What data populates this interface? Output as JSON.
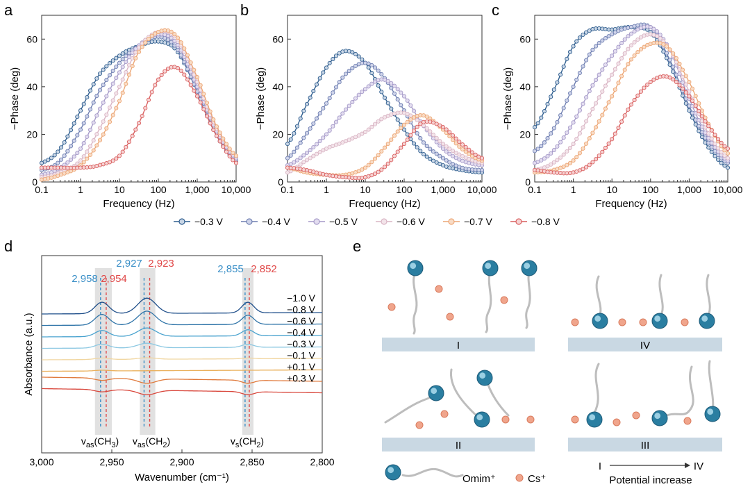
{
  "legend": {
    "entries": [
      {
        "label": "−0.3 V",
        "color": "#2e5d8e",
        "fill": "#c9d6e6"
      },
      {
        "label": "−0.4 V",
        "color": "#6f7fb1",
        "fill": "#cfd4ea"
      },
      {
        "label": "−0.5 V",
        "color": "#a59ac8",
        "fill": "#e3ddf0"
      },
      {
        "label": "−0.6 V",
        "color": "#d9b5c4",
        "fill": "#f3e4ea"
      },
      {
        "label": "−0.7 V",
        "color": "#eca675",
        "fill": "#f9dcc6"
      },
      {
        "label": "−0.8 V",
        "color": "#d95f5f",
        "fill": "#f6d3d3"
      }
    ]
  },
  "chart_data": [
    {
      "panel": "a",
      "type": "line",
      "xscale": "log",
      "xlim": [
        0.1,
        10000
      ],
      "ylim": [
        0,
        70
      ],
      "xlabel": "Frequency (Hz)",
      "ylabel": "−Phase (deg)",
      "xticks": [
        {
          "v": 0.1,
          "label": "0.1"
        },
        {
          "v": 1,
          "label": "1"
        },
        {
          "v": 10,
          "label": "10"
        },
        {
          "v": 100,
          "label": "100"
        },
        {
          "v": 1000,
          "label": "1,000"
        },
        {
          "v": 10000,
          "label": "10,000"
        }
      ],
      "yticks": [
        {
          "v": 0,
          "label": "0"
        },
        {
          "v": 20,
          "label": "20"
        },
        {
          "v": 40,
          "label": "40"
        },
        {
          "v": 60,
          "label": "60"
        }
      ],
      "series": [
        {
          "name": "−0.3 V",
          "x": [
            0.1,
            0.3,
            1,
            3,
            10,
            30,
            100,
            300,
            1000,
            3000,
            10000
          ],
          "y": [
            8,
            14,
            30,
            45,
            53,
            57,
            59,
            55,
            38,
            20,
            9
          ]
        },
        {
          "name": "−0.4 V",
          "x": [
            0.1,
            0.3,
            1,
            3,
            10,
            30,
            100,
            300,
            1000,
            3000,
            10000
          ],
          "y": [
            5,
            9,
            22,
            38,
            50,
            57,
            61,
            56,
            38,
            20,
            9
          ]
        },
        {
          "name": "−0.5 V",
          "x": [
            0.1,
            0.3,
            1,
            3,
            10,
            30,
            100,
            300,
            1000,
            3000,
            10000
          ],
          "y": [
            3,
            6,
            14,
            30,
            46,
            57,
            62,
            58,
            40,
            22,
            10
          ]
        },
        {
          "name": "−0.6 V",
          "x": [
            0.1,
            0.3,
            1,
            3,
            10,
            30,
            100,
            300,
            1000,
            3000,
            10000
          ],
          "y": [
            2,
            4,
            9,
            22,
            40,
            56,
            63,
            60,
            42,
            23,
            11
          ]
        },
        {
          "name": "−0.7 V",
          "x": [
            0.1,
            0.3,
            1,
            3,
            10,
            30,
            100,
            300,
            1000,
            3000,
            10000
          ],
          "y": [
            1,
            3,
            7,
            17,
            34,
            54,
            63,
            61,
            44,
            24,
            11
          ]
        },
        {
          "name": "−0.8 V",
          "x": [
            0.1,
            0.3,
            1,
            3,
            10,
            30,
            100,
            300,
            1000,
            3000,
            10000
          ],
          "y": [
            6,
            6,
            6,
            7,
            11,
            24,
            43,
            48,
            36,
            20,
            8
          ]
        }
      ]
    },
    {
      "panel": "b",
      "type": "line",
      "xscale": "log",
      "xlim": [
        0.1,
        10000
      ],
      "ylim": [
        0,
        70
      ],
      "xlabel": "Frequency (Hz)",
      "ylabel": "−Phase (deg)",
      "xticks": [
        {
          "v": 0.1,
          "label": "0.1"
        },
        {
          "v": 1,
          "label": "1"
        },
        {
          "v": 10,
          "label": "10"
        },
        {
          "v": 100,
          "label": "100"
        },
        {
          "v": 1000,
          "label": "1,000"
        },
        {
          "v": 10000,
          "label": "10,000"
        }
      ],
      "yticks": [
        {
          "v": 0,
          "label": "0"
        },
        {
          "v": 20,
          "label": "20"
        },
        {
          "v": 40,
          "label": "40"
        },
        {
          "v": 60,
          "label": "60"
        }
      ],
      "series": [
        {
          "name": "−0.3 V",
          "x": [
            0.1,
            0.3,
            1,
            3,
            10,
            30,
            100,
            300,
            1000,
            3000,
            10000
          ],
          "y": [
            16,
            32,
            48,
            55,
            50,
            36,
            22,
            12,
            7,
            5,
            4
          ]
        },
        {
          "name": "−0.4 V",
          "x": [
            0.1,
            0.3,
            1,
            3,
            10,
            30,
            100,
            300,
            1000,
            3000,
            10000
          ],
          "y": [
            10,
            20,
            33,
            45,
            50,
            44,
            30,
            17,
            10,
            6,
            5
          ]
        },
        {
          "name": "−0.5 V",
          "x": [
            0.1,
            0.3,
            1,
            3,
            10,
            30,
            100,
            300,
            1000,
            3000,
            10000
          ],
          "y": [
            7,
            12,
            20,
            30,
            39,
            43,
            36,
            24,
            14,
            9,
            7
          ]
        },
        {
          "name": "−0.6 V",
          "x": [
            0.1,
            0.3,
            1,
            3,
            10,
            30,
            100,
            300,
            1000,
            3000,
            10000
          ],
          "y": [
            4,
            9,
            14,
            17,
            21,
            27,
            29,
            24,
            16,
            11,
            8
          ]
        },
        {
          "name": "−0.7 V",
          "x": [
            0.1,
            0.3,
            1,
            3,
            10,
            30,
            100,
            300,
            1000,
            3000,
            10000
          ],
          "y": [
            6,
            4,
            3,
            3,
            6,
            14,
            24,
            28,
            22,
            14,
            9
          ]
        },
        {
          "name": "−0.8 V",
          "x": [
            0.1,
            0.3,
            1,
            3,
            10,
            30,
            100,
            300,
            1000,
            3000,
            10000
          ],
          "y": [
            6,
            5,
            3,
            2,
            2,
            6,
            16,
            25,
            23,
            16,
            10
          ]
        }
      ]
    },
    {
      "panel": "c",
      "type": "line",
      "xscale": "log",
      "xlim": [
        0.1,
        10000
      ],
      "ylim": [
        0,
        70
      ],
      "xlabel": "Frequency (Hz)",
      "ylabel": "−Phase (deg)",
      "xticks": [
        {
          "v": 0.1,
          "label": "0.1"
        },
        {
          "v": 1,
          "label": "1"
        },
        {
          "v": 10,
          "label": "10"
        },
        {
          "v": 100,
          "label": "100"
        },
        {
          "v": 1000,
          "label": "1,000"
        },
        {
          "v": 10000,
          "label": "10,000"
        }
      ],
      "yticks": [
        {
          "v": 0,
          "label": "0"
        },
        {
          "v": 20,
          "label": "20"
        },
        {
          "v": 40,
          "label": "40"
        },
        {
          "v": 60,
          "label": "60"
        }
      ],
      "series": [
        {
          "name": "−0.3 V",
          "x": [
            0.1,
            0.3,
            1,
            3,
            10,
            30,
            100,
            300,
            1000,
            3000,
            10000
          ],
          "y": [
            23,
            38,
            57,
            64,
            64,
            65,
            63,
            50,
            30,
            15,
            6
          ]
        },
        {
          "name": "−0.4 V",
          "x": [
            0.1,
            0.3,
            1,
            3,
            10,
            30,
            100,
            300,
            1000,
            3000,
            10000
          ],
          "y": [
            13,
            22,
            40,
            55,
            62,
            65,
            65,
            52,
            32,
            17,
            8
          ]
        },
        {
          "name": "−0.5 V",
          "x": [
            0.1,
            0.3,
            1,
            3,
            10,
            30,
            100,
            300,
            1000,
            3000,
            10000
          ],
          "y": [
            8,
            13,
            25,
            40,
            53,
            62,
            65,
            56,
            35,
            19,
            9
          ]
        },
        {
          "name": "−0.6 V",
          "x": [
            0.1,
            0.3,
            1,
            3,
            10,
            30,
            100,
            300,
            1000,
            3000,
            10000
          ],
          "y": [
            5,
            8,
            16,
            30,
            45,
            57,
            62,
            56,
            38,
            21,
            10
          ]
        },
        {
          "name": "−0.7 V",
          "x": [
            0.1,
            0.3,
            1,
            3,
            10,
            30,
            100,
            300,
            1000,
            3000,
            10000
          ],
          "y": [
            4,
            5,
            9,
            20,
            36,
            51,
            58,
            56,
            42,
            25,
            12
          ]
        },
        {
          "name": "−0.8 V",
          "x": [
            0.1,
            0.3,
            1,
            3,
            10,
            30,
            100,
            300,
            1000,
            3000,
            10000
          ],
          "y": [
            5,
            4,
            4,
            8,
            18,
            32,
            42,
            44,
            36,
            24,
            14
          ]
        }
      ]
    },
    {
      "panel": "d",
      "type": "line",
      "xscale": "linear",
      "xlim": [
        3000,
        2800
      ],
      "xlabel": "Wavenumber (cm⁻¹)",
      "ylabel": "Absorbance (a.u.)",
      "xticks": [
        {
          "v": 3000,
          "label": "3,000"
        },
        {
          "v": 2950,
          "label": "2,950"
        },
        {
          "v": 2900,
          "label": "2,900"
        },
        {
          "v": 2850,
          "label": "2,850"
        },
        {
          "v": 2800,
          "label": "2,800"
        }
      ],
      "band_labels": [
        {
          "name": "v_as(CH3)",
          "main": "v",
          "sub": "as",
          "rest": "(CH",
          "sub2": "3",
          "end": ")"
        },
        {
          "name": "v_as(CH2)",
          "main": "v",
          "sub": "as",
          "rest": "(CH",
          "sub2": "2",
          "end": ")"
        },
        {
          "name": "v_s(CH2)",
          "main": "v",
          "sub": "s",
          "rest": "(CH",
          "sub2": "2",
          "end": ")"
        }
      ],
      "peak_markers": [
        {
          "value": 2958,
          "label": "2,958",
          "color": "#3a8fc7"
        },
        {
          "value": 2954,
          "label": "2,954",
          "color": "#e04848"
        },
        {
          "value": 2927,
          "label": "2,927",
          "color": "#3a8fc7"
        },
        {
          "value": 2923,
          "label": "2,923",
          "color": "#e04848"
        },
        {
          "value": 2855,
          "label": "2,855",
          "color": "#3a8fc7"
        },
        {
          "value": 2852,
          "label": "2,852",
          "color": "#e04848"
        }
      ],
      "bands": [
        [
          2962,
          2950
        ],
        [
          2930,
          2919
        ],
        [
          2857,
          2849
        ]
      ],
      "series": [
        {
          "name": "−1.0 V",
          "color": "#1f4f8a",
          "peaks": [
            0.75,
            1.0,
            0.7
          ]
        },
        {
          "name": "−0.8 V",
          "color": "#2f74a8",
          "peaks": [
            0.7,
            0.9,
            0.6
          ]
        },
        {
          "name": "−0.6 V",
          "color": "#4aa3cf",
          "peaks": [
            0.4,
            0.55,
            0.4
          ]
        },
        {
          "name": "−0.4 V",
          "color": "#8cc8e2",
          "peaks": [
            0.25,
            0.3,
            0.2
          ]
        },
        {
          "name": "−0.3 V",
          "color": "#f1d6a0",
          "peaks": [
            0.1,
            0.1,
            0.05
          ]
        },
        {
          "name": "−0.1 V",
          "color": "#eab05c",
          "peaks": [
            0.05,
            0.0,
            0.0
          ]
        },
        {
          "name": "+0.1 V",
          "color": "#e07a3c",
          "peaks": [
            -0.15,
            -0.3,
            -0.2
          ]
        },
        {
          "name": "+0.3 V",
          "color": "#d9473c",
          "peaks": [
            -0.15,
            -0.3,
            -0.2
          ]
        }
      ]
    }
  ],
  "schematic": {
    "panel": "e",
    "stages": [
      "I",
      "IV",
      "II",
      "III"
    ],
    "legend_omim": "Omim⁺",
    "legend_cs": "Cs⁺",
    "arrow_from": "I",
    "arrow_to": "IV",
    "arrow_caption": "Potential increase"
  }
}
